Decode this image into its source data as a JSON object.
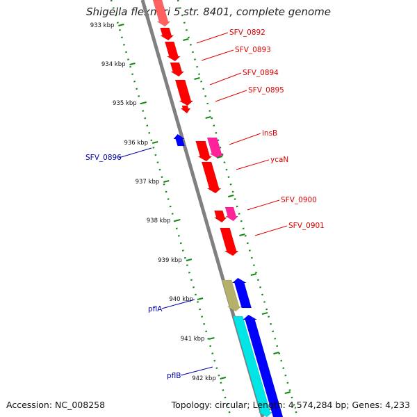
{
  "title": "Shigella flexneri 5 str. 8401, complete genome",
  "accession": "Accession: NC_008258",
  "genome_info": "Topology: circular; Length: 4,574,284 bp; Genes: 4,233",
  "colors": {
    "backbone": "#808080",
    "forward_gene": "#ff0000",
    "forward_gene_alt": "#ff2299",
    "reverse_gene": "#0000ff",
    "cyan_gene": "#00e5e5",
    "olive_gene": "#b5b06a",
    "tick": "#118811",
    "label_red": "#dd0000",
    "label_blue": "#0000aa"
  },
  "ticks": [
    "933 kbp",
    "934 kbp",
    "935 kbp",
    "936 kbp",
    "937 kbp",
    "938 kbp",
    "939 kbp",
    "940 kbp",
    "941 kbp",
    "942 kbp"
  ],
  "gene_labels": [
    {
      "text": "SFV_0892",
      "color": "red"
    },
    {
      "text": "SFV_0893",
      "color": "red"
    },
    {
      "text": "SFV_0894",
      "color": "red"
    },
    {
      "text": "SFV_0895",
      "color": "red"
    },
    {
      "text": "insB",
      "color": "red"
    },
    {
      "text": "ycaN",
      "color": "red"
    },
    {
      "text": "SFV_0900",
      "color": "red"
    },
    {
      "text": "SFV_0901",
      "color": "red"
    },
    {
      "text": "SFV_0896",
      "color": "blue"
    },
    {
      "text": "pflA",
      "color": "blue"
    },
    {
      "text": "pflB",
      "color": "blue"
    }
  ]
}
